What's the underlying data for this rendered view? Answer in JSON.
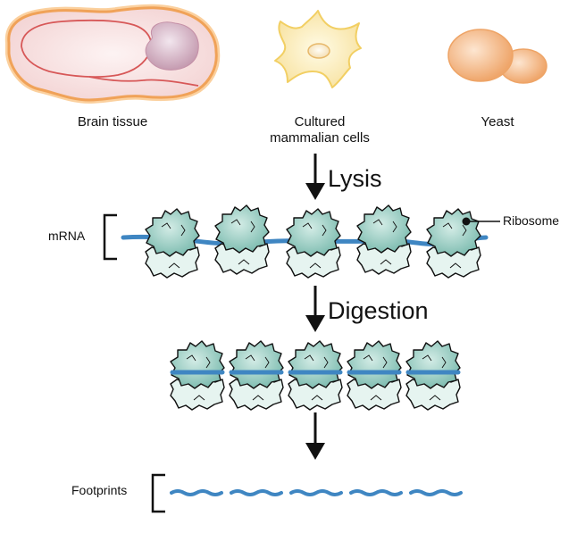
{
  "sources": {
    "brain": "Brain tissue",
    "cells_line1": "Cultured",
    "cells_line2": "mammalian cells",
    "yeast": "Yeast"
  },
  "steps": {
    "lysis": "Lysis",
    "digestion": "Digestion"
  },
  "labels": {
    "mrna": "mRNA",
    "ribosome": "Ribosome",
    "footprints": "Footprints"
  },
  "colors": {
    "mrna": "#3f86c2",
    "ribosome_large": "#8ec7bd",
    "ribosome_small": "#e6f4f0",
    "brain_fill": "#f6dede",
    "brain_outline": "#f4b36e",
    "cell_fill": "#fbefbf",
    "yeast_fill": "#f3b98a"
  },
  "icons": [
    "brain-tissue-icon",
    "mammalian-cell-icon",
    "yeast-icon",
    "ribosome-icon"
  ]
}
